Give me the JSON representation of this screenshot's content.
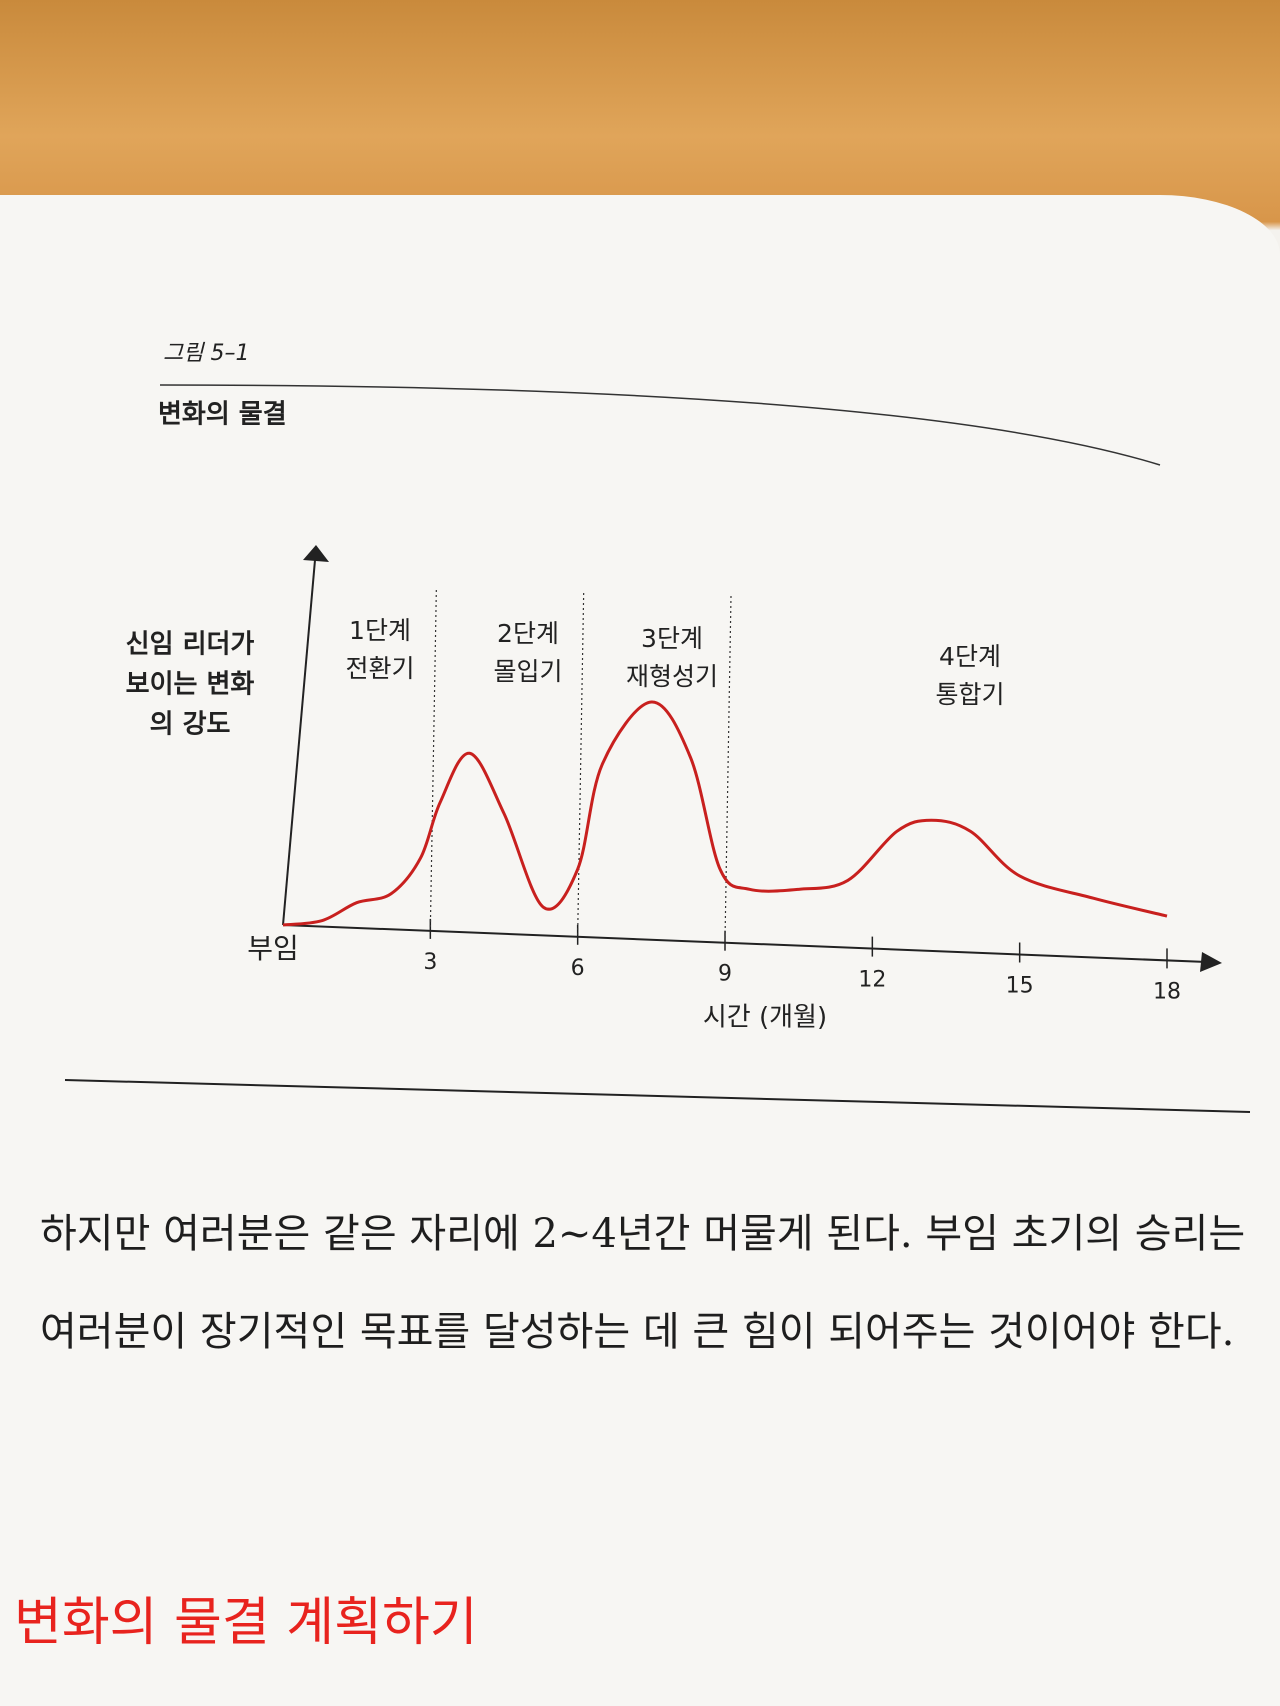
{
  "chart_data": {
    "type": "line",
    "figure_label": "그림 5–1",
    "title": "변화의 물결",
    "y_label": [
      "신임 리더가",
      "보이는 변화",
      "의 강도"
    ],
    "x_label": "시간 (개월)",
    "phases": [
      {
        "stage": "1단계",
        "name": "전환기"
      },
      {
        "stage": "2단계",
        "name": "몰입기"
      },
      {
        "stage": "3단계",
        "name": "재형성기"
      },
      {
        "stage": "4단계",
        "name": "통합기"
      }
    ],
    "x": [
      0,
      0.8,
      1.5,
      2.2,
      2.8,
      3.2,
      3.8,
      4.5,
      5.3,
      6,
      6.5,
      7.5,
      8.3,
      8.9,
      9.5,
      10.5,
      11.5,
      12.5,
      13.2,
      14,
      15,
      16.5,
      18
    ],
    "series": [
      {
        "name": "변화의 강도",
        "color": "#c8201e",
        "values": [
          0,
          2,
          10,
          14,
          30,
          55,
          77,
          50,
          8,
          25,
          72,
          100,
          75,
          25,
          16,
          16,
          20,
          42,
          47,
          42,
          22,
          12,
          4
        ]
      }
    ],
    "xlim": [
      0,
      18
    ],
    "xticks": [
      {
        "value": 0,
        "label": "부임"
      },
      3,
      6,
      9,
      12,
      15,
      18
    ],
    "ylim": [
      0,
      100
    ]
  },
  "body": {
    "paragraph": "하지만 여러분은 같은 자리에 2~4년간 머물게 된다. 부임 초기의 승리는 여러분이 장기적인 목표를 달성하는 데 큰 힘이 되어주는 것이어야 한다.",
    "heading": "변화의 물결 계획하기"
  }
}
